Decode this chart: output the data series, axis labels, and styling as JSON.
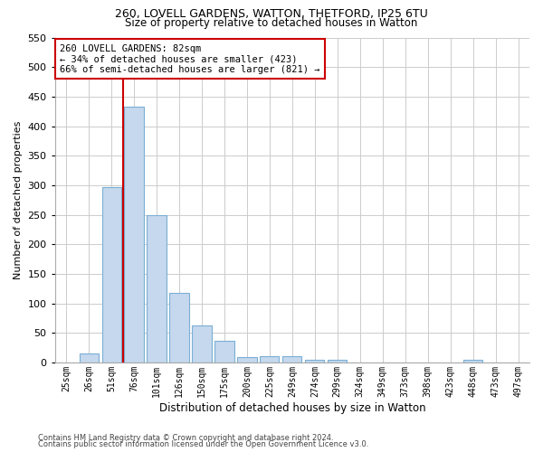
{
  "title1": "260, LOVELL GARDENS, WATTON, THETFORD, IP25 6TU",
  "title2": "Size of property relative to detached houses in Watton",
  "xlabel": "Distribution of detached houses by size in Watton",
  "ylabel": "Number of detached properties",
  "categories": [
    "25sqm",
    "26sqm",
    "51sqm",
    "76sqm",
    "101sqm",
    "126sqm",
    "150sqm",
    "175sqm",
    "200sqm",
    "225sqm",
    "249sqm",
    "274sqm",
    "299sqm",
    "324sqm",
    "349sqm",
    "373sqm",
    "398sqm",
    "423sqm",
    "448sqm",
    "473sqm",
    "497sqm"
  ],
  "values": [
    0,
    15,
    297,
    433,
    250,
    118,
    63,
    36,
    9,
    10,
    10,
    5,
    4,
    0,
    0,
    0,
    0,
    0,
    4,
    0,
    0
  ],
  "bar_color": "#c5d8ed",
  "bar_edge_color": "#7aafd4",
  "vline_color": "#cc0000",
  "annotation_line1": "260 LOVELL GARDENS: 82sqm",
  "annotation_line2": "← 34% of detached houses are smaller (423)",
  "annotation_line3": "66% of semi-detached houses are larger (821) →",
  "annotation_box_color": "#ffffff",
  "annotation_box_edge": "#cc0000",
  "ylim": [
    0,
    550
  ],
  "yticks": [
    0,
    50,
    100,
    150,
    200,
    250,
    300,
    350,
    400,
    450,
    500,
    550
  ],
  "footer1": "Contains HM Land Registry data © Crown copyright and database right 2024.",
  "footer2": "Contains public sector information licensed under the Open Government Licence v3.0.",
  "bg_color": "#ffffff",
  "grid_color": "#cccccc",
  "vline_index": 2.5
}
